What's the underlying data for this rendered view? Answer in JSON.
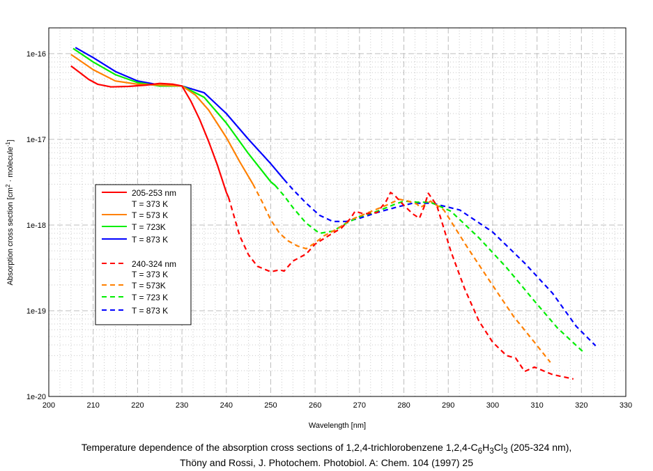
{
  "chart_data": {
    "type": "line",
    "title": "",
    "xlabel": "Wavelength [nm]",
    "ylabel": {
      "pre": "Absorption cross section [cm",
      "sup1": "2",
      "mid": " · molecule",
      "sup2": "-1",
      "post": "]"
    },
    "xlim": [
      200,
      330
    ],
    "ylim": [
      1e-20,
      2e-16
    ],
    "yscale": "log",
    "grid": true,
    "x_ticks": [
      200,
      210,
      220,
      230,
      240,
      250,
      260,
      270,
      280,
      290,
      300,
      310,
      320,
      330
    ],
    "y_ticks": [
      {
        "v": 1e-16,
        "label": "1e-16"
      },
      {
        "v": 1e-17,
        "label": "1e-17"
      },
      {
        "v": 1e-18,
        "label": "1e-18"
      },
      {
        "v": 1e-19,
        "label": "1e-19"
      },
      {
        "v": 1e-20,
        "label": "1e-20"
      }
    ],
    "legend_position": "left-middle",
    "legend": [
      {
        "text": "205-253 nm",
        "color": "#ff0000",
        "dash": false
      },
      {
        "text": "T = 373 K",
        "color": null
      },
      {
        "text": "T = 573 K",
        "color": "#ff8000",
        "dash": false
      },
      {
        "text": "T = 723K",
        "color": "#00ee00",
        "dash": false
      },
      {
        "text": "T = 873 K",
        "color": "#0000ff",
        "dash": false
      },
      {
        "text": "240-324 nm",
        "color": "#ff0000",
        "dash": true
      },
      {
        "text": "T = 373 K",
        "color": null
      },
      {
        "text": "T = 573K",
        "color": "#ff8000",
        "dash": true
      },
      {
        "text": "T = 723 K",
        "color": "#00ee00",
        "dash": true
      },
      {
        "text": "T = 873 K",
        "color": "#0000ff",
        "dash": true
      }
    ],
    "series": [
      {
        "name": "205-253 nm T = 873 K",
        "color": "#0000ff",
        "dash": false,
        "x": [
          206,
          210,
          215,
          220,
          225,
          230,
          235,
          240,
          245,
          250,
          253
        ],
        "y": [
          1.18e-16,
          9e-17,
          6.2e-17,
          4.8e-17,
          4.3e-17,
          4.2e-17,
          3.5e-17,
          2e-17,
          1e-17,
          5.2e-18,
          3.4e-18
        ]
      },
      {
        "name": "205-253 nm T = 723 K",
        "color": "#00ee00",
        "dash": false,
        "x": [
          205.5,
          210,
          215,
          220,
          225,
          230,
          235,
          240,
          245,
          250,
          251
        ],
        "y": [
          1.15e-16,
          8e-17,
          5.7e-17,
          4.6e-17,
          4.2e-17,
          4.2e-17,
          3.1e-17,
          1.55e-17,
          6.8e-18,
          3.2e-18,
          2.9e-18
        ]
      },
      {
        "name": "205-253 nm T = 573 K",
        "color": "#ff8000",
        "dash": false,
        "x": [
          205,
          210,
          215,
          220,
          225,
          230,
          233,
          236,
          240,
          243,
          246
        ],
        "y": [
          9.8e-17,
          6.5e-17,
          4.8e-17,
          4.4e-17,
          4.3e-17,
          4.2e-17,
          3.3e-17,
          2.2e-17,
          1.05e-17,
          5.5e-18,
          3e-18
        ]
      },
      {
        "name": "205-253 nm T = 373 K",
        "color": "#ff0000",
        "dash": false,
        "x": [
          205,
          207,
          209,
          211,
          214,
          218,
          222,
          225,
          228,
          230,
          232,
          234,
          236,
          238,
          240,
          240.5
        ],
        "y": [
          7.2e-17,
          6e-17,
          5e-17,
          4.4e-17,
          4.1e-17,
          4.15e-17,
          4.3e-17,
          4.5e-17,
          4.4e-17,
          4.2e-17,
          2.8e-17,
          1.7e-17,
          9.5e-18,
          5e-18,
          2.4e-18,
          2.1e-18
        ]
      },
      {
        "name": "240-324 nm T = 873 K",
        "color": "#0000ff",
        "dash": true,
        "x": [
          253,
          255,
          258,
          261,
          264,
          267,
          270,
          274,
          278,
          282,
          286.3,
          292.6,
          300,
          307.2,
          313.5,
          318.8,
          323.2
        ],
        "y": [
          3.4e-18,
          2.6e-18,
          1.8e-18,
          1.3e-18,
          1.1e-18,
          1.1e-18,
          1.2e-18,
          1.4e-18,
          1.6e-18,
          1.8e-18,
          1.8e-18,
          1.5e-18,
          8.3e-19,
          3.6e-19,
          1.6e-19,
          6.6e-20,
          3.9e-20
        ]
      },
      {
        "name": "240-324 nm T = 723 K",
        "color": "#00ee00",
        "dash": true,
        "x": [
          251,
          253,
          255,
          258,
          261,
          264,
          267,
          270,
          274,
          278,
          280,
          283,
          286,
          290.6,
          296.9,
          303.1,
          309.4,
          314.6,
          320.4
        ],
        "y": [
          2.9e-18,
          2.2e-18,
          1.6e-18,
          1.05e-18,
          8e-19,
          8.5e-19,
          1.05e-18,
          1.25e-18,
          1.45e-18,
          1.75e-18,
          1.9e-18,
          1.85e-18,
          1.85e-18,
          1.45e-18,
          7.1e-19,
          3.2e-19,
          1.3e-19,
          6.3e-20,
          3.3e-20
        ]
      },
      {
        "name": "240-324 nm T = 573 K",
        "color": "#ff8000",
        "dash": true,
        "x": [
          246,
          248,
          250,
          252,
          254,
          256,
          258,
          260,
          262,
          265,
          268,
          272,
          276,
          279,
          281,
          283,
          283.7,
          286,
          289,
          294.2,
          299.4,
          304.7,
          309.4,
          313
        ],
        "y": [
          3e-18,
          1.9e-18,
          1.15e-18,
          8e-19,
          6.5e-19,
          5.7e-19,
          5.3e-19,
          6.2e-19,
          7.5e-19,
          9e-19,
          1.15e-18,
          1.4e-18,
          1.7e-18,
          2e-18,
          1.9e-18,
          1.75e-18,
          1.6e-18,
          1.9e-18,
          1.5e-18,
          5.6e-19,
          2.2e-19,
          8.6e-20,
          4.3e-20,
          2.5e-20
        ]
      },
      {
        "name": "240-324 nm T = 373 K",
        "color": "#ff0000",
        "dash": true,
        "x": [
          240.5,
          243,
          245,
          247,
          250,
          252,
          253,
          255,
          258,
          260,
          263,
          266,
          268,
          269,
          271,
          274,
          276,
          277,
          278,
          280,
          282,
          283.5,
          284.5,
          285.5,
          287.4,
          290.6,
          293.7,
          296.9,
          300,
          303.1,
          305.2,
          307.2,
          309.4,
          313.5,
          318.2
        ],
        "y": [
          2.1e-18,
          7.5e-19,
          4.5e-19,
          3.3e-19,
          2.85e-19,
          3e-19,
          2.9e-19,
          3.8e-19,
          4.6e-19,
          6e-19,
          7.5e-19,
          9.3e-19,
          1.2e-18,
          1.45e-18,
          1.35e-18,
          1.4e-18,
          1.9e-18,
          2.4e-18,
          2.2e-18,
          1.7e-18,
          1.35e-18,
          1.2e-18,
          1.6e-18,
          2.35e-18,
          1.7e-18,
          4.9e-19,
          1.8e-19,
          7.6e-20,
          4.3e-20,
          3e-20,
          2.8e-20,
          1.96e-20,
          2.2e-20,
          1.8e-20,
          1.6e-20
        ]
      }
    ]
  },
  "caption": {
    "line1": {
      "a": "Temperature dependence of the absorption cross sections of 1,2,4-trichlorobenzene 1,2,4-C",
      "s1": "6",
      "b": "H",
      "s2": "3",
      "c": "Cl",
      "s3": "3",
      "d": " (205-324 nm),"
    },
    "line2": "Thöny and Rossi, J. Photochem. Photobiol. A: Chem. 104 (1997) 25"
  }
}
